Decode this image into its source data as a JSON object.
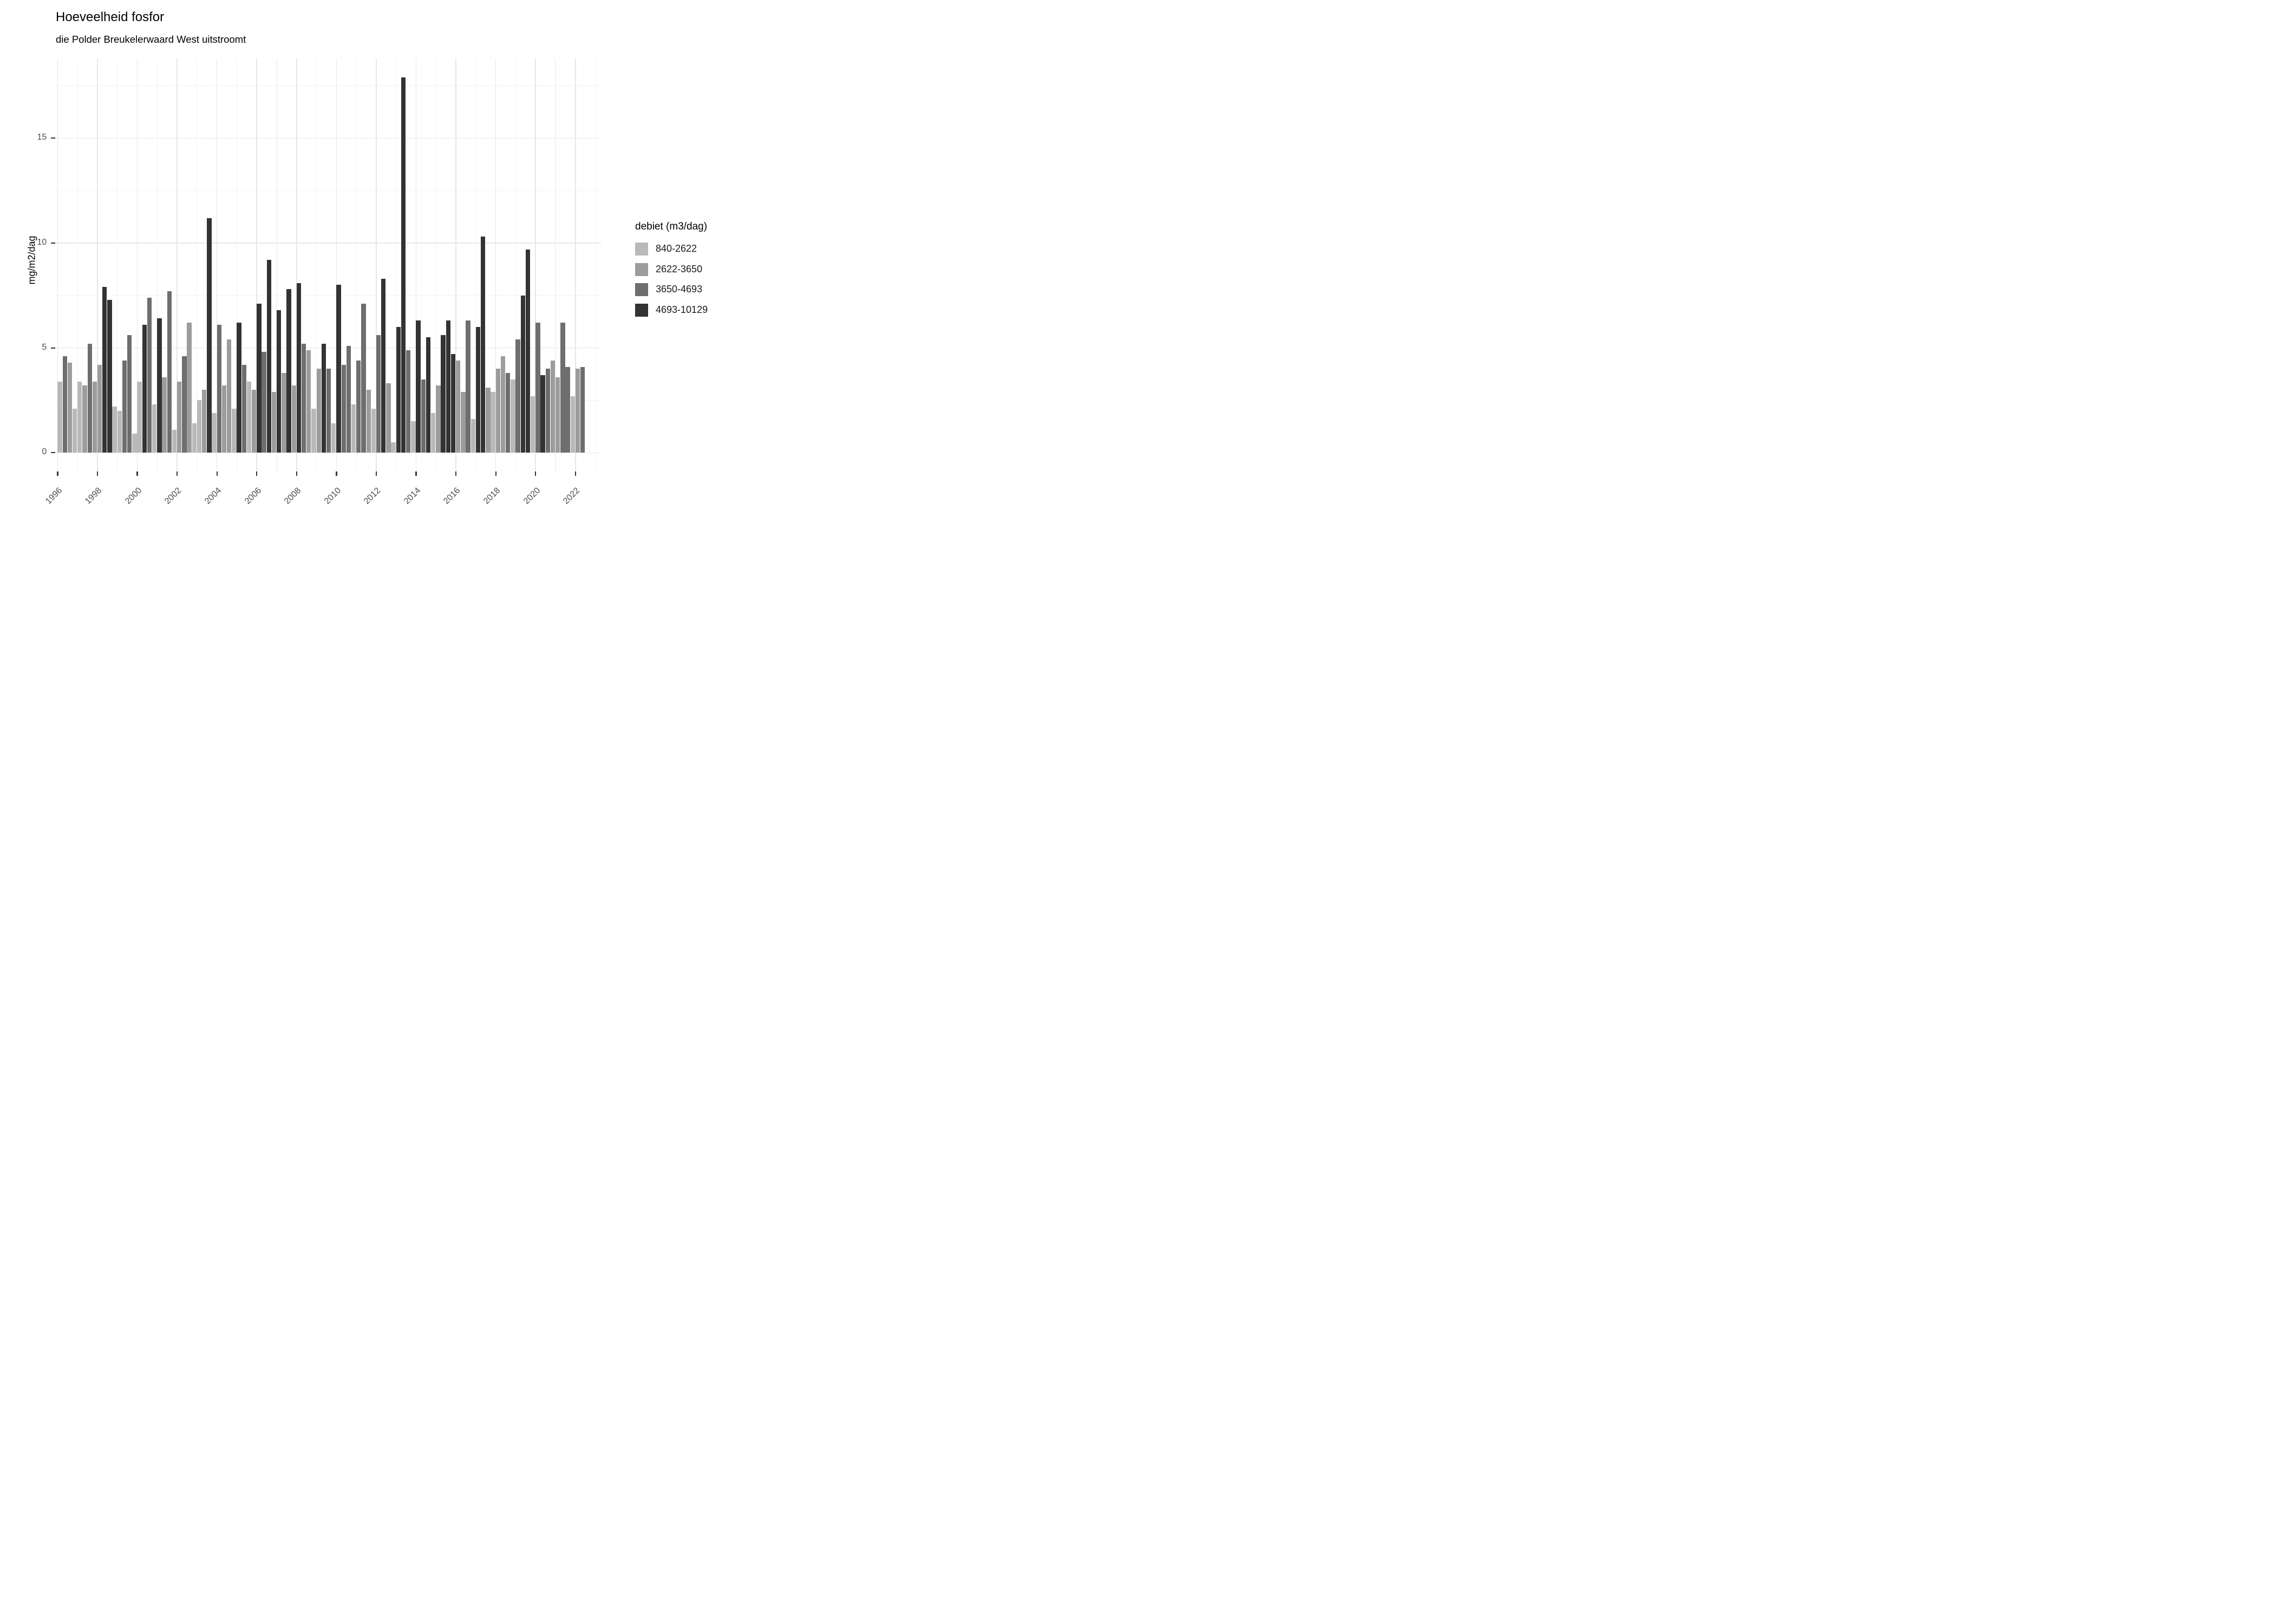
{
  "chart_data": {
    "type": "bar",
    "title": "Hoeveelheid fosfor",
    "subtitle": "die Polder Breukelerwaard West uitstroomt",
    "ylabel": "mg/m2/dag",
    "yticks": [
      0,
      5,
      10,
      15
    ],
    "ylim": [
      0,
      18.8
    ],
    "grid": "major and minor, light gray on white",
    "x_tick_years": [
      1996,
      1998,
      2000,
      2002,
      2004,
      2006,
      2008,
      2010,
      2012,
      2014,
      2016,
      2018,
      2020,
      2022
    ],
    "legend": {
      "title": "debiet (m3/dag)",
      "position": "right",
      "entries": [
        {
          "label": "840-2622",
          "color": "#b9b9b9"
        },
        {
          "label": "2622-3650",
          "color": "#9c9c9c"
        },
        {
          "label": "3650-4693",
          "color": "#6e6e6e"
        },
        {
          "label": "4693-10129",
          "color": "#333333"
        }
      ]
    },
    "years": [
      {
        "year": 1996,
        "quarters": [
          {
            "v": 3.4,
            "bin": 0
          },
          {
            "v": 4.6,
            "bin": 2
          },
          {
            "v": 4.3,
            "bin": 1
          },
          {
            "v": 2.1,
            "bin": 0
          }
        ]
      },
      {
        "year": 1997,
        "quarters": [
          {
            "v": 3.4,
            "bin": 0
          },
          {
            "v": 3.2,
            "bin": 1
          },
          {
            "v": 5.2,
            "bin": 2
          },
          {
            "v": 3.4,
            "bin": 1
          }
        ]
      },
      {
        "year": 1998,
        "quarters": [
          {
            "v": 4.2,
            "bin": 1
          },
          {
            "v": 7.9,
            "bin": 3
          },
          {
            "v": 7.3,
            "bin": 3
          },
          {
            "v": 2.2,
            "bin": 0
          }
        ]
      },
      {
        "year": 1999,
        "quarters": [
          {
            "v": 2.0,
            "bin": 0
          },
          {
            "v": 4.4,
            "bin": 2
          },
          {
            "v": 5.6,
            "bin": 2
          },
          {
            "v": 0.9,
            "bin": 0
          }
        ]
      },
      {
        "year": 2000,
        "quarters": [
          {
            "v": 3.4,
            "bin": 0
          },
          {
            "v": 6.1,
            "bin": 3
          },
          {
            "v": 7.4,
            "bin": 2
          },
          {
            "v": 2.3,
            "bin": 0
          }
        ]
      },
      {
        "year": 2001,
        "quarters": [
          {
            "v": 6.4,
            "bin": 3
          },
          {
            "v": 3.6,
            "bin": 1
          },
          {
            "v": 7.7,
            "bin": 2
          },
          {
            "v": 1.1,
            "bin": 0
          }
        ]
      },
      {
        "year": 2002,
        "quarters": [
          {
            "v": 3.4,
            "bin": 1
          },
          {
            "v": 4.6,
            "bin": 2
          },
          {
            "v": 6.2,
            "bin": 1
          },
          {
            "v": 1.4,
            "bin": 0
          }
        ]
      },
      {
        "year": 2003,
        "quarters": [
          {
            "v": 2.5,
            "bin": 0
          },
          {
            "v": 3.0,
            "bin": 1
          },
          {
            "v": 11.2,
            "bin": 3
          },
          {
            "v": 1.9,
            "bin": 0
          }
        ]
      },
      {
        "year": 2004,
        "quarters": [
          {
            "v": 6.1,
            "bin": 2
          },
          {
            "v": 3.2,
            "bin": 1
          },
          {
            "v": 5.4,
            "bin": 1
          },
          {
            "v": 2.1,
            "bin": 0
          }
        ]
      },
      {
        "year": 2005,
        "quarters": [
          {
            "v": 6.2,
            "bin": 3
          },
          {
            "v": 4.2,
            "bin": 2
          },
          {
            "v": 3.4,
            "bin": 0
          },
          {
            "v": 3.0,
            "bin": 1
          }
        ]
      },
      {
        "year": 2006,
        "quarters": [
          {
            "v": 7.1,
            "bin": 3
          },
          {
            "v": 4.8,
            "bin": 2
          },
          {
            "v": 9.2,
            "bin": 3
          },
          {
            "v": 2.9,
            "bin": 1
          }
        ]
      },
      {
        "year": 2007,
        "quarters": [
          {
            "v": 6.8,
            "bin": 3
          },
          {
            "v": 3.8,
            "bin": 1
          },
          {
            "v": 7.8,
            "bin": 3
          },
          {
            "v": 3.2,
            "bin": 1
          }
        ]
      },
      {
        "year": 2008,
        "quarters": [
          {
            "v": 8.1,
            "bin": 3
          },
          {
            "v": 5.2,
            "bin": 2
          },
          {
            "v": 4.9,
            "bin": 1
          },
          {
            "v": 2.1,
            "bin": 0
          }
        ]
      },
      {
        "year": 2009,
        "quarters": [
          {
            "v": 4.0,
            "bin": 1
          },
          {
            "v": 5.2,
            "bin": 3
          },
          {
            "v": 4.0,
            "bin": 2
          },
          {
            "v": 1.4,
            "bin": 0
          }
        ]
      },
      {
        "year": 2010,
        "quarters": [
          {
            "v": 8.0,
            "bin": 3
          },
          {
            "v": 4.2,
            "bin": 2
          },
          {
            "v": 5.1,
            "bin": 2
          },
          {
            "v": 2.3,
            "bin": 0
          }
        ]
      },
      {
        "year": 2011,
        "quarters": [
          {
            "v": 4.4,
            "bin": 2
          },
          {
            "v": 7.1,
            "bin": 2
          },
          {
            "v": 3.0,
            "bin": 1
          },
          {
            "v": 2.1,
            "bin": 0
          }
        ]
      },
      {
        "year": 2012,
        "quarters": [
          {
            "v": 5.6,
            "bin": 2
          },
          {
            "v": 8.3,
            "bin": 3
          },
          {
            "v": 3.3,
            "bin": 1
          },
          {
            "v": 0.5,
            "bin": 0
          }
        ]
      },
      {
        "year": 2013,
        "quarters": [
          {
            "v": 6.0,
            "bin": 3
          },
          {
            "v": 17.9,
            "bin": 3
          },
          {
            "v": 4.9,
            "bin": 2
          },
          {
            "v": 1.5,
            "bin": 0
          }
        ]
      },
      {
        "year": 2014,
        "quarters": [
          {
            "v": 6.3,
            "bin": 3
          },
          {
            "v": 3.5,
            "bin": 2
          },
          {
            "v": 5.5,
            "bin": 3
          },
          {
            "v": 1.9,
            "bin": 0
          }
        ]
      },
      {
        "year": 2015,
        "quarters": [
          {
            "v": 3.2,
            "bin": 1
          },
          {
            "v": 5.6,
            "bin": 3
          },
          {
            "v": 6.3,
            "bin": 3
          },
          {
            "v": 4.7,
            "bin": 3
          }
        ]
      },
      {
        "year": 2016,
        "quarters": [
          {
            "v": 4.4,
            "bin": 1
          },
          {
            "v": 2.9,
            "bin": 1
          },
          {
            "v": 6.3,
            "bin": 2
          },
          {
            "v": 1.6,
            "bin": 0
          }
        ]
      },
      {
        "year": 2017,
        "quarters": [
          {
            "v": 6.0,
            "bin": 3
          },
          {
            "v": 10.3,
            "bin": 3
          },
          {
            "v": 3.1,
            "bin": 1
          },
          {
            "v": 2.9,
            "bin": 0
          }
        ]
      },
      {
        "year": 2018,
        "quarters": [
          {
            "v": 4.0,
            "bin": 1
          },
          {
            "v": 4.6,
            "bin": 1
          },
          {
            "v": 3.8,
            "bin": 2
          },
          {
            "v": 3.5,
            "bin": 0
          }
        ]
      },
      {
        "year": 2019,
        "quarters": [
          {
            "v": 5.4,
            "bin": 2
          },
          {
            "v": 7.5,
            "bin": 3
          },
          {
            "v": 9.7,
            "bin": 3
          },
          {
            "v": 2.7,
            "bin": 0
          }
        ]
      },
      {
        "year": 2020,
        "quarters": [
          {
            "v": 6.2,
            "bin": 2
          },
          {
            "v": 3.7,
            "bin": 3
          },
          {
            "v": 4.0,
            "bin": 2
          },
          {
            "v": 4.4,
            "bin": 1
          }
        ]
      },
      {
        "year": 2021,
        "quarters": [
          {
            "v": 3.6,
            "bin": 1
          },
          {
            "v": 6.2,
            "bin": 2
          },
          {
            "v": 4.1,
            "bin": 2
          },
          {
            "v": 2.7,
            "bin": 0
          }
        ]
      },
      {
        "year": 2022,
        "quarters": [
          {
            "v": 4.0,
            "bin": 1
          },
          {
            "v": 4.1,
            "bin": 2
          },
          null,
          null
        ]
      }
    ]
  }
}
